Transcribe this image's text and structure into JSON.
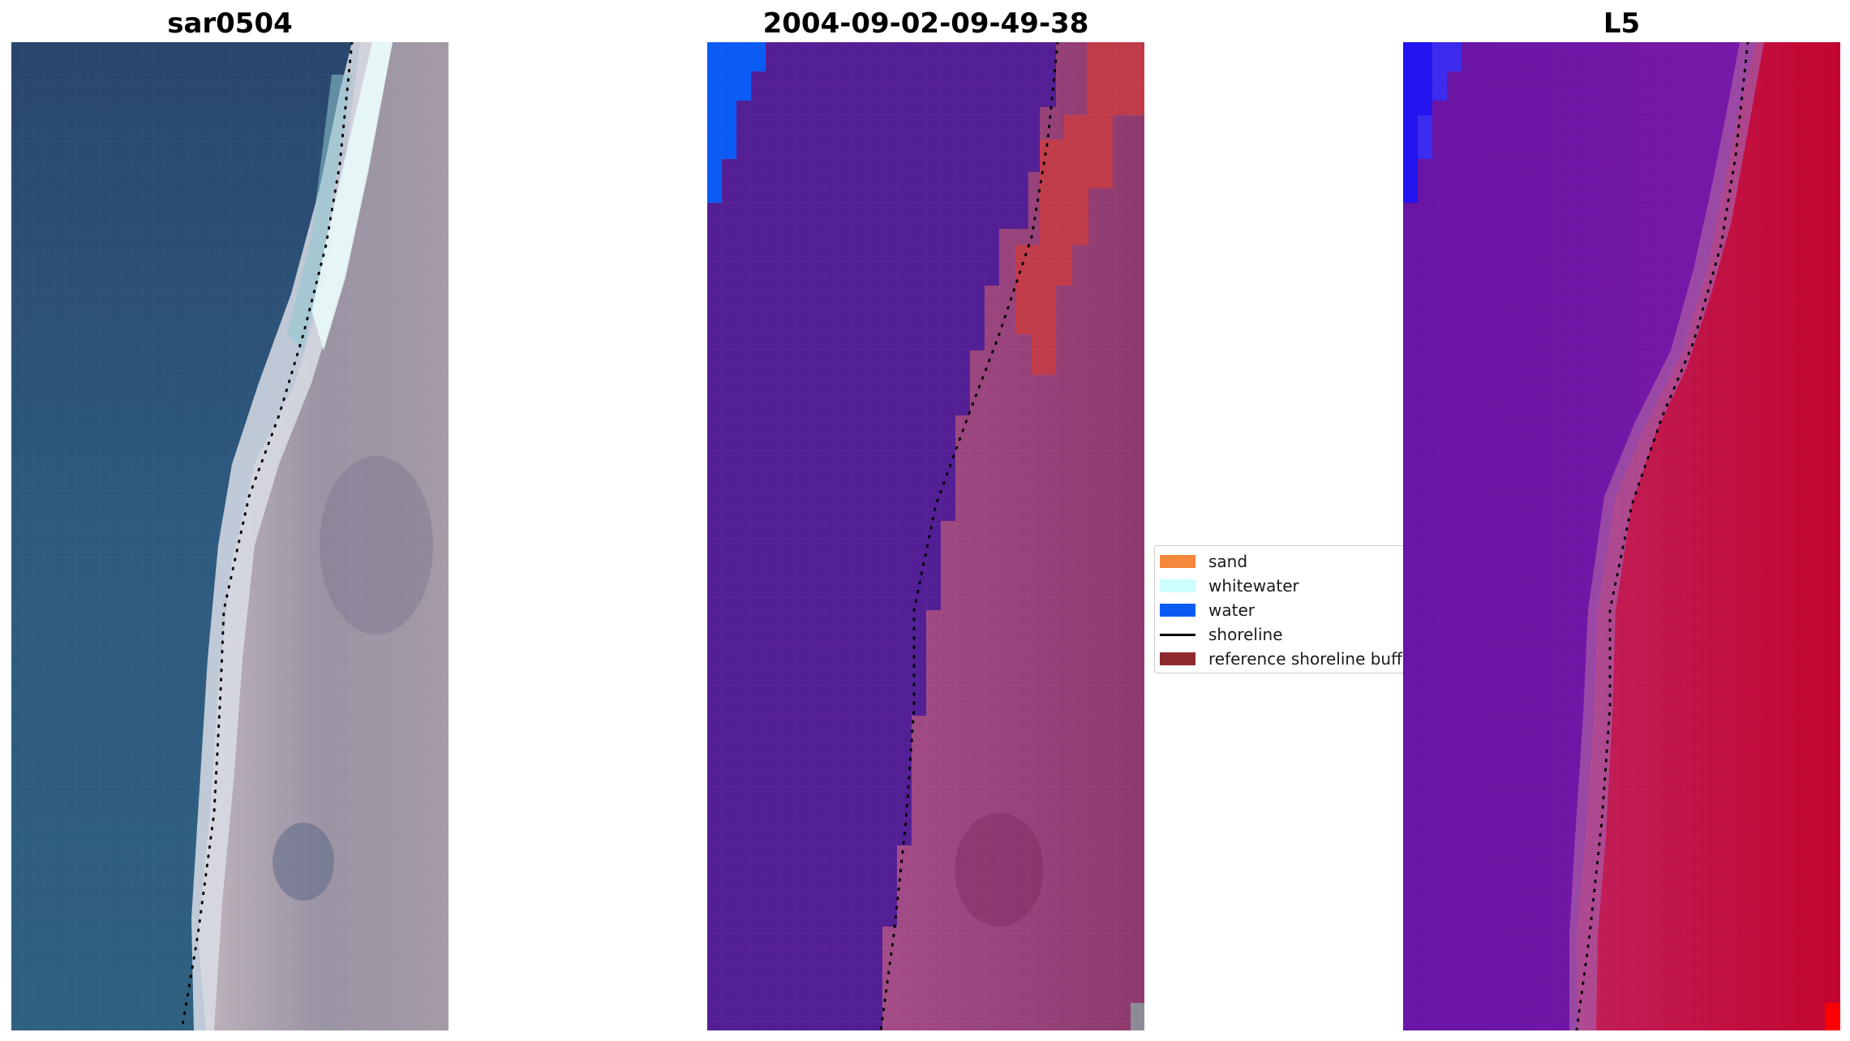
{
  "panels": [
    {
      "title": "sar0504"
    },
    {
      "title": "2004-09-02-09-49-38"
    },
    {
      "title": "L5"
    }
  ],
  "legend": {
    "items": [
      {
        "label": "sand",
        "color": "#f5873a"
      },
      {
        "label": "whitewater",
        "color": "#ccfffc"
      },
      {
        "label": "water",
        "color": "#0a5cf5"
      },
      {
        "label": "shoreline",
        "color": "#000000"
      },
      {
        "label": "reference shoreline buffer",
        "color": "#8f2b2e"
      }
    ]
  },
  "colors": {
    "rgb_water": "#2f5d80",
    "rgb_sand": "#a8a0aa",
    "classified_water": "#531f95",
    "classified_sand_overlay": "#9a4476",
    "classified_buffer": "#c13c4a",
    "index_low": "#5e12a0",
    "index_high": "#c0072d"
  }
}
